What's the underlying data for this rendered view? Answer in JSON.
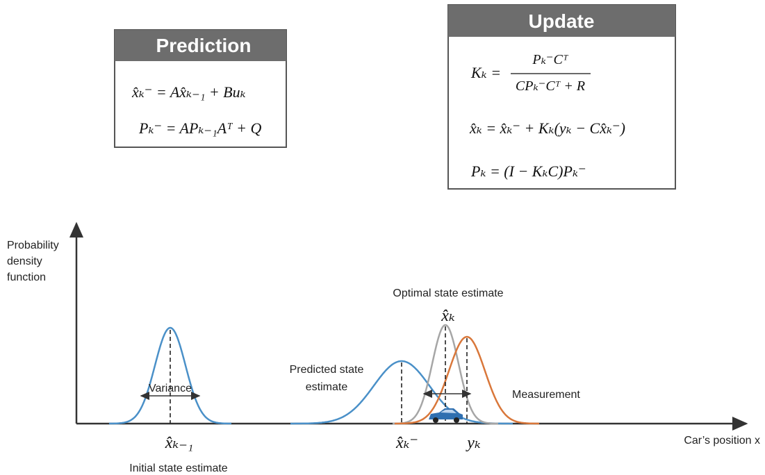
{
  "prediction": {
    "title": "Prediction",
    "equations": [
      "x̂ₖ⁻ = Ax̂ₖ₋₁ + Buₖ",
      "Pₖ⁻ = APₖ₋₁Aᵀ + Q"
    ]
  },
  "update": {
    "title": "Update",
    "gain": {
      "lhs": "Kₖ =",
      "numerator": "Pₖ⁻Cᵀ",
      "denominator": "CPₖ⁻Cᵀ + R"
    },
    "equations": [
      "x̂ₖ = x̂ₖ⁻ + Kₖ(yₖ − Cx̂ₖ⁻)",
      "Pₖ = (I − KₖC)Pₖ⁻"
    ]
  },
  "plot": {
    "y_axis_label": [
      "Probability",
      "density",
      "function"
    ],
    "x_axis_label": "Car’s position x",
    "variance": "Variance",
    "initial_symbol": "x̂ₖ₋₁",
    "initial_label": "Initial state estimate",
    "predicted_label": [
      "Predicted state",
      "estimate"
    ],
    "predicted_symbol": "x̂ₖ⁻",
    "optimal_label": "Optimal state estimate",
    "optimal_symbol": "x̂ₖ",
    "measurement_label": "Measurement",
    "measurement_symbol": "yₖ"
  }
}
